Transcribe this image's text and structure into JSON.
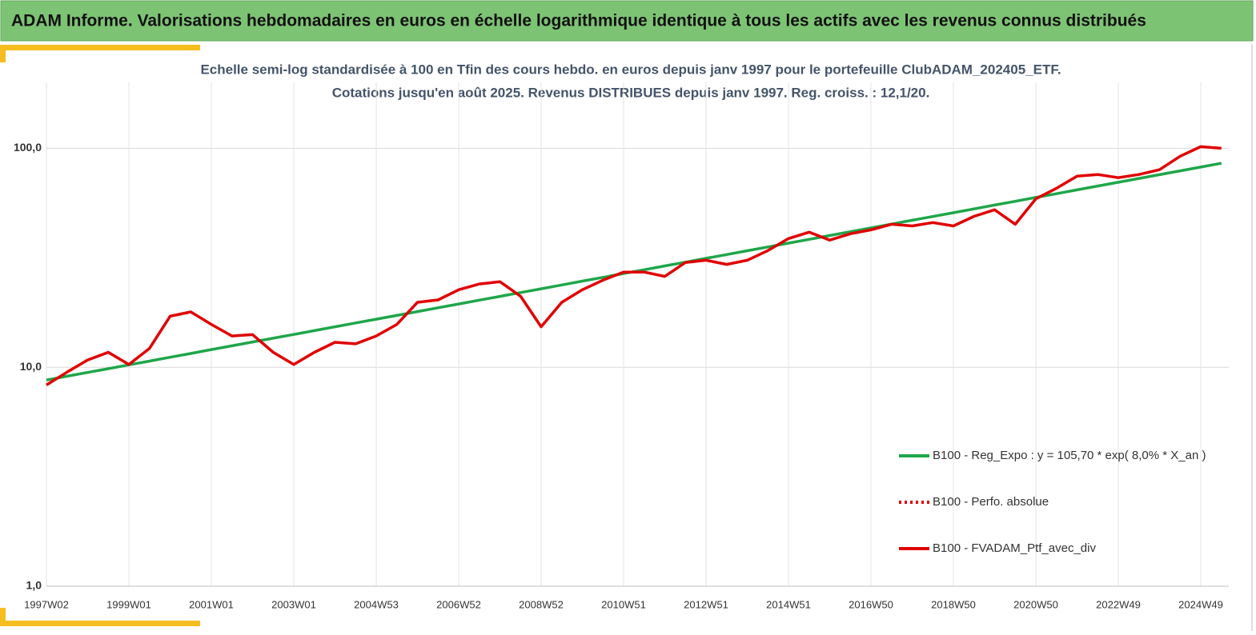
{
  "header": {
    "title": "ADAM Informe. Valorisations hebdomadaires en euros en échelle logarithmique identique à tous les actifs avec les revenus connus distribués"
  },
  "chart_data": {
    "type": "line",
    "title": "Echelle semi-log standardisée à 100 en Tfin des cours hebdo.  en euros depuis janv 1997 pour le portefeuille ClubADAM_202405_ETF.",
    "subtitle": "Cotations  jusqu'en août 2025. Revenus DISTRIBUES depuis janv 1997. Reg. croiss. : 12,1/20.",
    "categories": [
      "1997W02",
      null,
      null,
      null,
      "1999W01",
      null,
      null,
      null,
      "2001W01",
      null,
      null,
      null,
      "2003W01",
      null,
      null,
      null,
      "2004W53",
      null,
      null,
      null,
      "2006W52",
      null,
      null,
      null,
      "2008W52",
      null,
      null,
      null,
      "2010W51",
      null,
      null,
      null,
      "2012W51",
      null,
      null,
      null,
      "2014W51",
      null,
      null,
      null,
      "2016W50",
      null,
      null,
      null,
      "2018W50",
      null,
      null,
      null,
      "2020W50",
      null,
      null,
      null,
      "2022W49",
      null,
      null,
      null,
      "2024W49",
      null
    ],
    "series": [
      {
        "name": "B100 - Reg_Expo : y = 105,70 * exp( 8,0% *  X_an )",
        "color": "#1fa64a",
        "style": "solid",
        "values": [
          8.74,
          9.1,
          9.47,
          9.85,
          10.26,
          10.67,
          11.11,
          11.56,
          12.04,
          12.53,
          13.04,
          13.57,
          14.12,
          14.7,
          15.3,
          15.93,
          16.58,
          17.25,
          17.96,
          18.69,
          19.45,
          20.25,
          21.07,
          21.93,
          22.83,
          23.76,
          24.73,
          25.74,
          26.79,
          27.88,
          29.02,
          30.2,
          31.43,
          32.72,
          34.05,
          35.44,
          36.89,
          38.39,
          39.96,
          41.59,
          43.29,
          45.06,
          46.9,
          48.81,
          50.8,
          52.87,
          55.03,
          57.28,
          59.61,
          62.05,
          64.58,
          67.22,
          69.96,
          72.81,
          75.79,
          78.88,
          82.1,
          85.45
        ]
      },
      {
        "name": "B100 - Perfo. absolue",
        "color": "#e00000",
        "style": "dotted",
        "values": [
          null,
          null,
          null,
          null,
          null,
          null,
          null,
          null,
          null,
          null,
          null,
          null,
          null,
          null,
          null,
          null,
          null,
          null,
          null,
          null,
          null,
          null,
          null,
          null,
          null,
          null,
          null,
          null,
          null,
          null,
          null,
          null,
          null,
          null,
          null,
          null,
          null,
          null,
          null,
          null,
          null,
          null,
          null,
          null,
          null,
          null,
          null,
          null,
          null,
          null,
          null,
          null,
          null,
          null,
          null,
          null,
          null,
          null
        ]
      },
      {
        "name": "B100 - FVADAM_Ptf_avec_div",
        "color": "#e00000",
        "style": "solid",
        "values": [
          8.3,
          9.5,
          10.8,
          11.7,
          10.3,
          12.2,
          17.1,
          17.9,
          15.7,
          13.9,
          14.1,
          11.7,
          10.3,
          11.7,
          13.0,
          12.8,
          13.9,
          15.7,
          19.8,
          20.3,
          22.6,
          24.0,
          24.6,
          21.1,
          15.3,
          19.8,
          22.6,
          25.0,
          27.2,
          27.2,
          26.0,
          30.1,
          30.8,
          29.5,
          30.8,
          34.1,
          38.7,
          41.4,
          38.1,
          40.7,
          42.4,
          45.0,
          44.2,
          45.8,
          44.2,
          48.9,
          52.4,
          45.0,
          58.8,
          65.7,
          74.6,
          75.9,
          73.4,
          75.9,
          79.8,
          92.0,
          101.7,
          100.0
        ]
      }
    ],
    "log_scale": true,
    "ylim": [
      1,
      200
    ],
    "yticks": [
      {
        "value": 1,
        "label": "1,0"
      },
      {
        "value": 10,
        "label": "10,0"
      },
      {
        "value": 100,
        "label": "100,0"
      }
    ],
    "grid": true,
    "legend": "lower right"
  }
}
